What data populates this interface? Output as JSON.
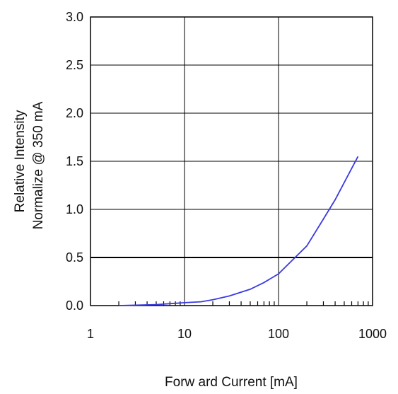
{
  "chart_data": {
    "type": "line",
    "xscale": "log",
    "xlim": [
      1,
      1000
    ],
    "ylim": [
      0,
      3
    ],
    "xticks": [
      1,
      10,
      100,
      1000
    ],
    "xtick_labels": [
      "1",
      "10",
      "100",
      "1000"
    ],
    "yticks": [
      0,
      0.5,
      1,
      1.5,
      2,
      2.5,
      3
    ],
    "ytick_labels": [
      "0.0",
      "0.5",
      "1.0",
      "1.5",
      "2.0",
      "2.5",
      "3.0"
    ],
    "xlabel": "Forw ard Current [mA]",
    "ylabel_lines": [
      "Relative Intensity",
      "Normalize @ 350 mA"
    ],
    "grid": true,
    "colors": {
      "series": "#3a3ae0",
      "grid": "#000000",
      "axis": "#000000"
    },
    "series": [
      {
        "x": [
          2,
          5,
          10,
          15,
          20,
          30,
          50,
          70,
          100,
          150,
          200,
          300,
          400,
          500,
          700
        ],
        "y": [
          0.0,
          0.01,
          0.03,
          0.04,
          0.06,
          0.1,
          0.17,
          0.24,
          0.33,
          0.5,
          0.62,
          0.9,
          1.1,
          1.28,
          1.55
        ]
      }
    ]
  }
}
